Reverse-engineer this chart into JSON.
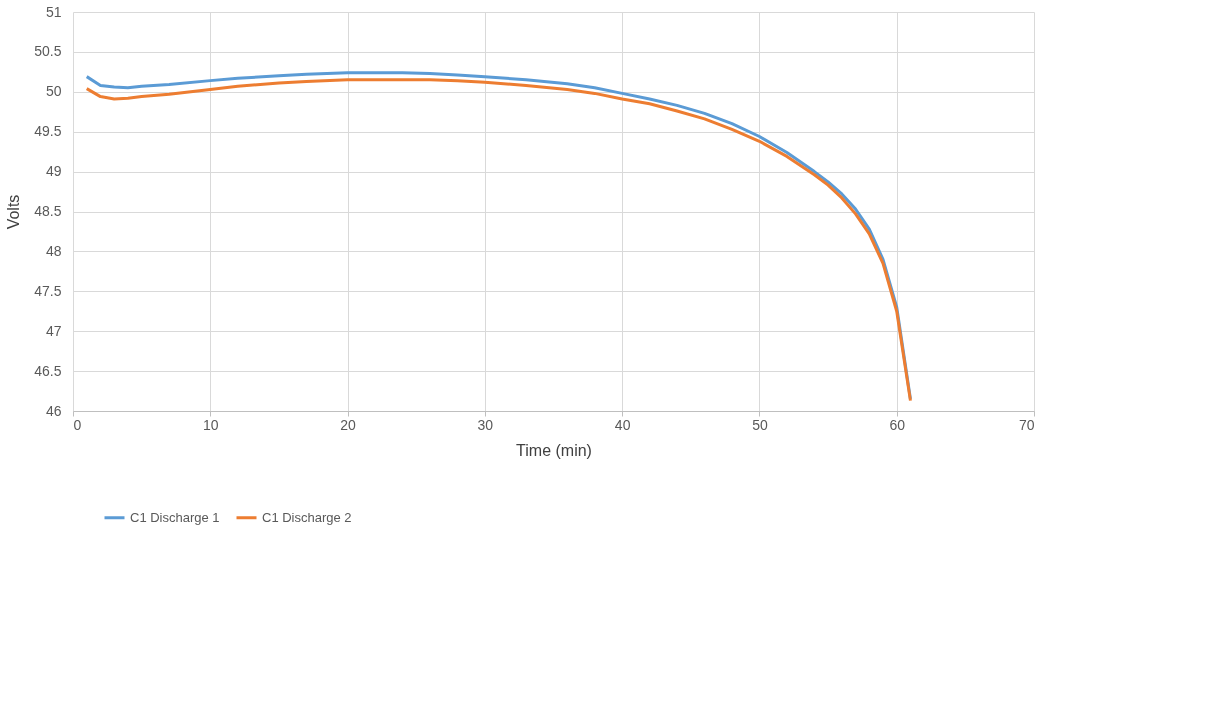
{
  "chart_data": {
    "type": "line",
    "xlabel": "Time (min)",
    "ylabel": "Volts",
    "x": [
      1,
      2,
      3,
      4,
      5,
      7,
      10,
      12,
      15,
      17,
      20,
      24,
      26,
      28,
      30,
      33,
      36,
      38,
      40,
      42,
      44,
      46,
      48,
      50,
      52,
      54,
      55,
      56,
      57,
      58,
      59,
      60,
      61
    ],
    "series": [
      {
        "name": "C1 Discharge 1",
        "color": "#5b9bd5",
        "values": [
          50.19,
          50.08,
          50.06,
          50.05,
          50.07,
          50.09,
          50.14,
          50.17,
          50.2,
          50.22,
          50.24,
          50.24,
          50.23,
          50.21,
          50.19,
          50.15,
          50.1,
          50.05,
          49.98,
          49.91,
          49.83,
          49.73,
          49.6,
          49.44,
          49.24,
          49.0,
          48.87,
          48.72,
          48.53,
          48.28,
          47.9,
          47.3,
          46.15
        ]
      },
      {
        "name": "C1 Discharge 2",
        "color": "#ed7d31",
        "values": [
          50.04,
          49.94,
          49.91,
          49.92,
          49.94,
          49.97,
          50.03,
          50.07,
          50.11,
          50.13,
          50.15,
          50.15,
          50.15,
          50.14,
          50.12,
          50.08,
          50.03,
          49.98,
          49.91,
          49.85,
          49.76,
          49.66,
          49.53,
          49.38,
          49.19,
          48.96,
          48.83,
          48.67,
          48.47,
          48.22,
          47.85,
          47.25,
          46.13
        ]
      }
    ],
    "xlim": [
      0,
      70
    ],
    "xticks": [
      0,
      10,
      20,
      30,
      40,
      50,
      60,
      70
    ],
    "ylim": [
      46,
      51
    ],
    "yticks": [
      46,
      46.5,
      47,
      47.5,
      48,
      48.5,
      49,
      49.5,
      50,
      50.5,
      51
    ],
    "grid": true,
    "legend": "bottom",
    "marker": "none",
    "line_style": "solid"
  }
}
